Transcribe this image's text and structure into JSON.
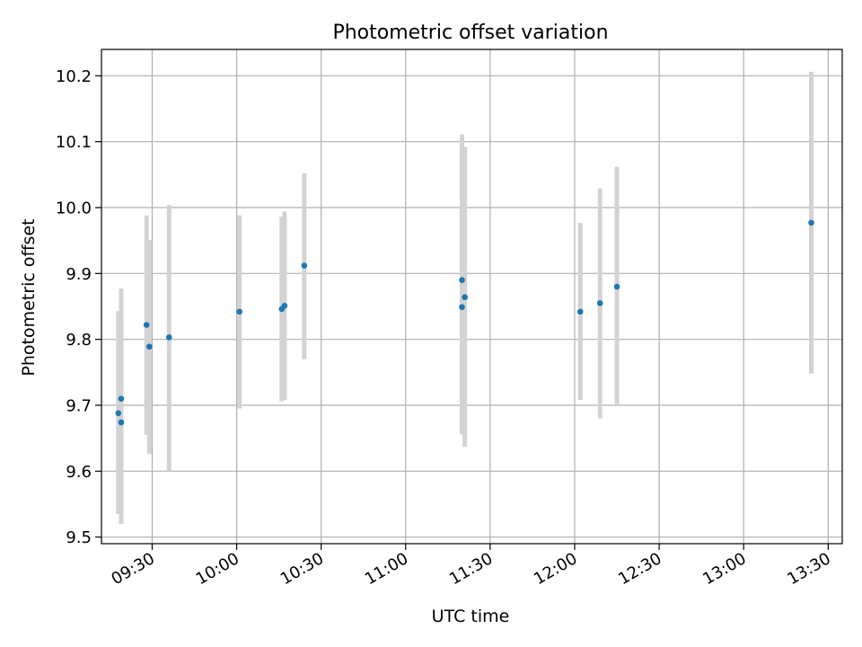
{
  "chart_data": {
    "type": "scatter",
    "title": "Photometric offset variation",
    "xlabel": "UTC time",
    "ylabel": "Photometric offset",
    "x_ticks": [
      "09:30",
      "10:00",
      "10:30",
      "11:00",
      "11:30",
      "12:00",
      "12:30",
      "13:00",
      "13:30"
    ],
    "y_ticks": [
      "9.5",
      "9.6",
      "9.7",
      "9.8",
      "9.9",
      "10.0",
      "10.1",
      "10.2"
    ],
    "xlim": [
      "09:12",
      "13:35"
    ],
    "ylim": [
      9.49,
      10.24
    ],
    "grid": true,
    "colors": {
      "point": "#1f77b4",
      "errorbar": "#d3d3d3",
      "grid": "#b0b0b0"
    },
    "series": [
      {
        "points": [
          {
            "time": "09:18",
            "y": 9.688,
            "ylow": 9.535,
            "yhigh": 9.843
          },
          {
            "time": "09:19",
            "y": 9.674,
            "ylow": 9.52,
            "yhigh": 9.828
          },
          {
            "time": "09:19",
            "y": 9.71,
            "ylow": 9.545,
            "yhigh": 9.877
          },
          {
            "time": "09:28",
            "y": 9.822,
            "ylow": 9.655,
            "yhigh": 9.988
          },
          {
            "time": "09:29",
            "y": 9.789,
            "ylow": 9.626,
            "yhigh": 9.951
          },
          {
            "time": "09:36",
            "y": 9.803,
            "ylow": 9.6,
            "yhigh": 10.004
          },
          {
            "time": "10:01",
            "y": 9.842,
            "ylow": 9.695,
            "yhigh": 9.988
          },
          {
            "time": "10:16",
            "y": 9.846,
            "ylow": 9.706,
            "yhigh": 9.986
          },
          {
            "time": "10:17",
            "y": 9.851,
            "ylow": 9.708,
            "yhigh": 9.994
          },
          {
            "time": "10:24",
            "y": 9.912,
            "ylow": 9.77,
            "yhigh": 10.052
          },
          {
            "time": "11:20",
            "y": 9.89,
            "ylow": 9.656,
            "yhigh": 10.042
          },
          {
            "time": "11:20",
            "y": 9.849,
            "ylow": 9.661,
            "yhigh": 10.111
          },
          {
            "time": "11:21",
            "y": 9.864,
            "ylow": 9.637,
            "yhigh": 10.092
          },
          {
            "time": "12:02",
            "y": 9.842,
            "ylow": 9.708,
            "yhigh": 9.977
          },
          {
            "time": "12:09",
            "y": 9.855,
            "ylow": 9.68,
            "yhigh": 10.029
          },
          {
            "time": "12:15",
            "y": 9.88,
            "ylow": 9.7,
            "yhigh": 10.062
          },
          {
            "time": "13:24",
            "y": 9.977,
            "ylow": 9.748,
            "yhigh": 10.206
          }
        ]
      }
    ]
  }
}
